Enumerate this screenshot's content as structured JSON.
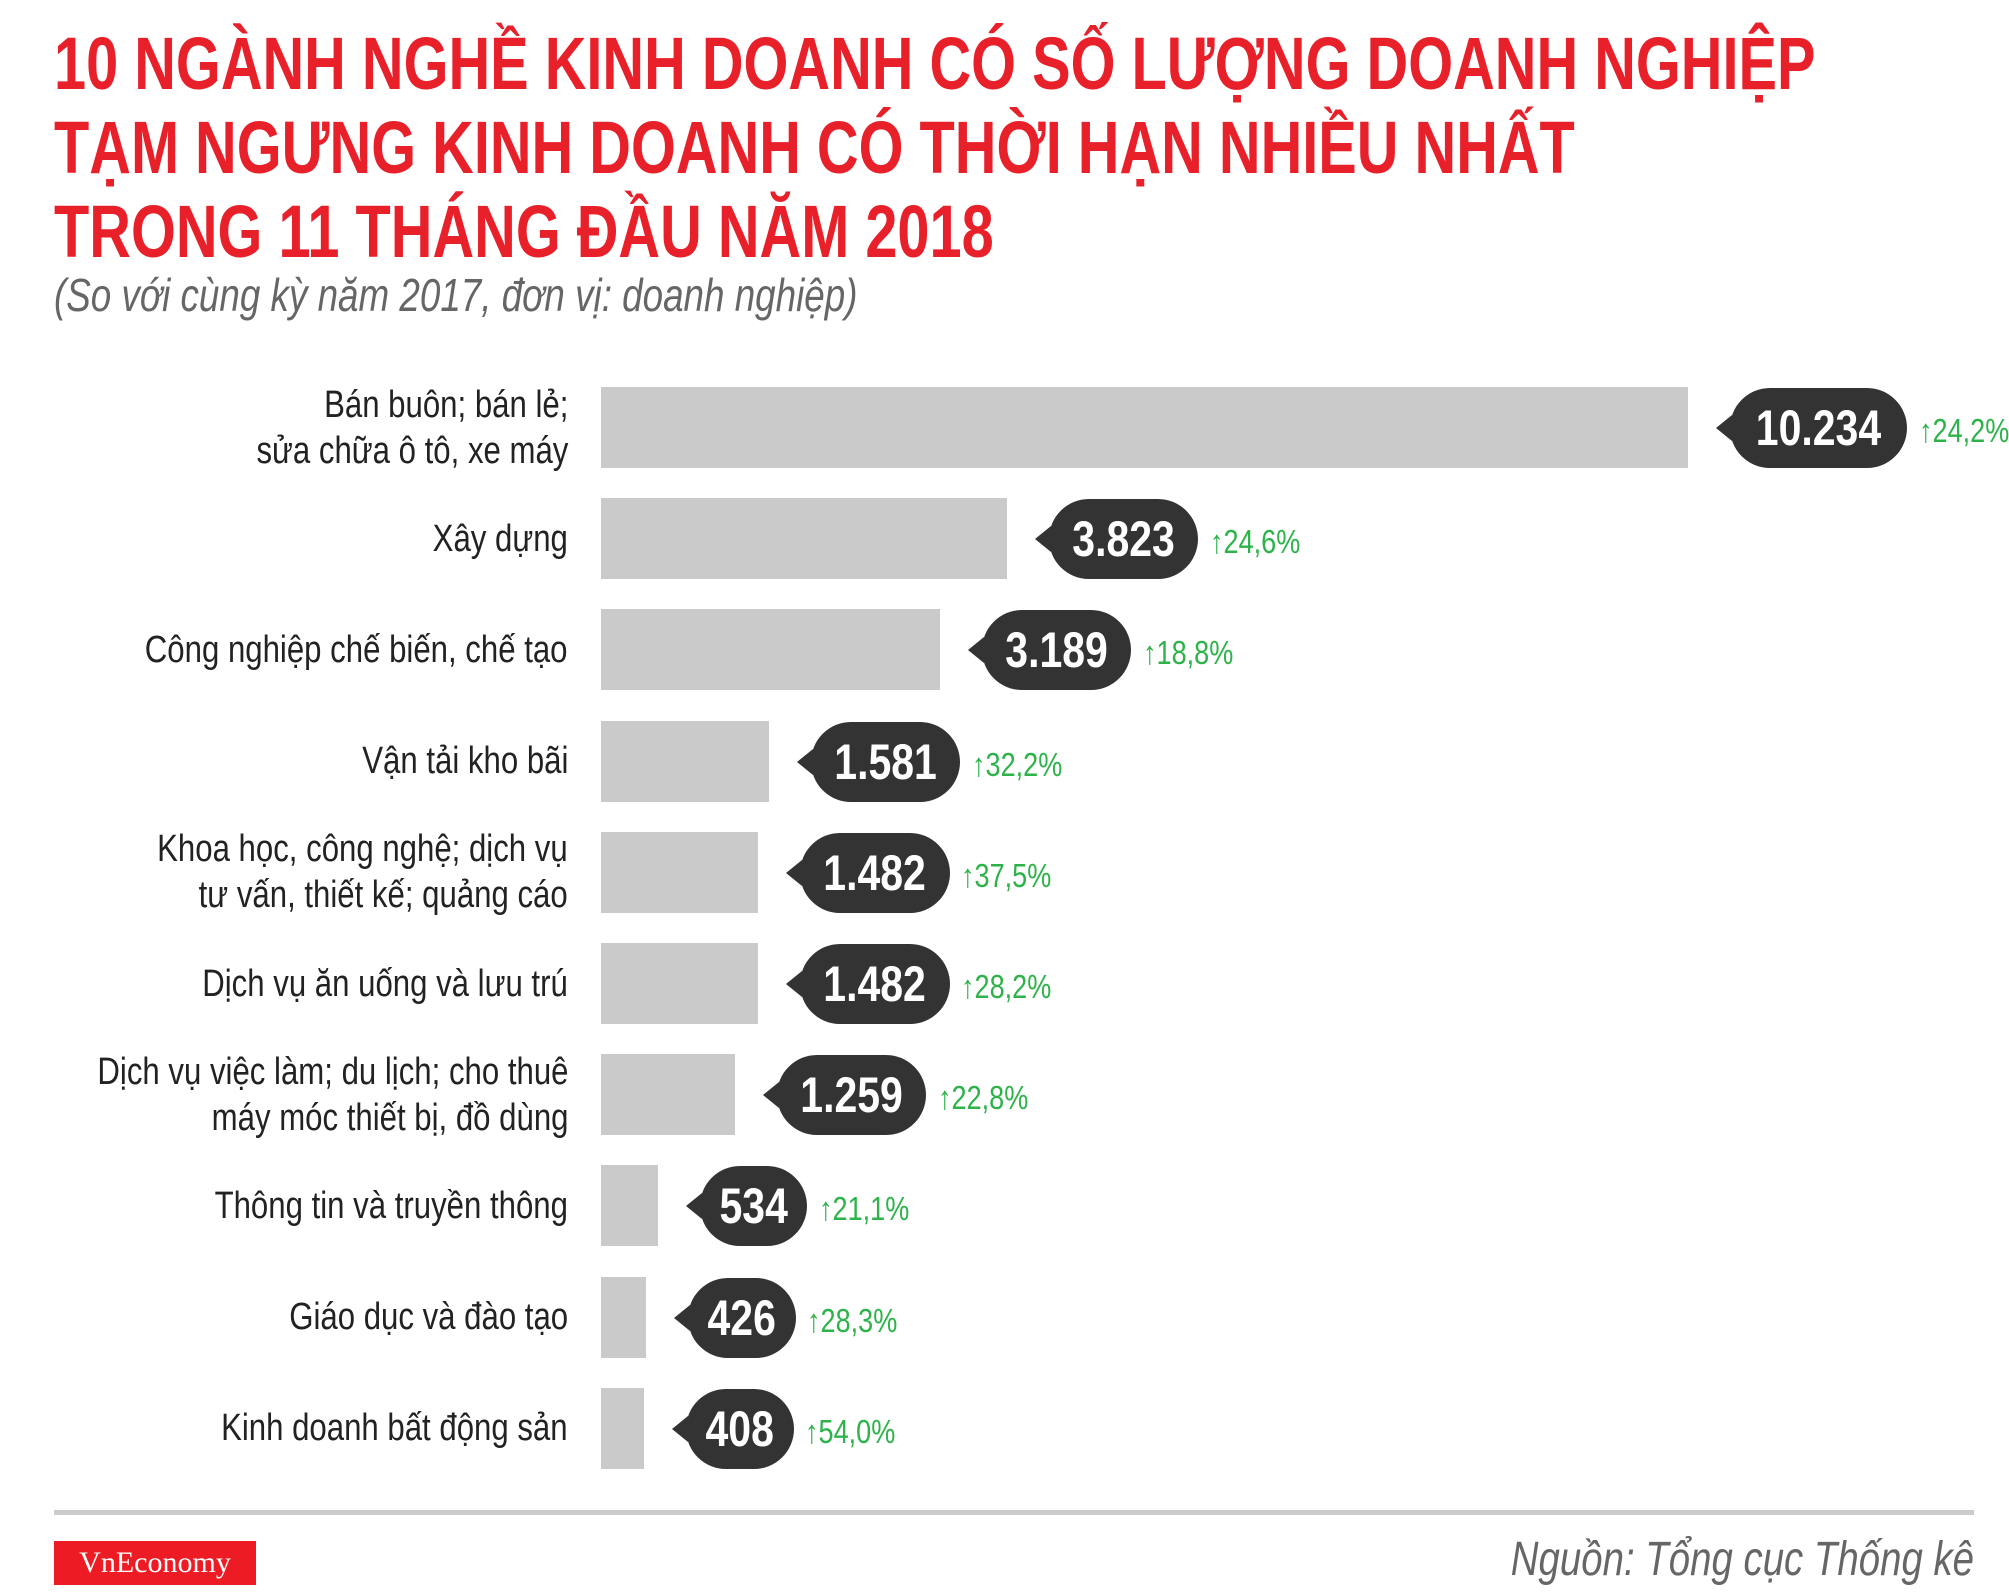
{
  "header": {
    "title_lines": [
      "10 NGÀNH NGHỀ KINH DOANH CÓ SỐ LƯỢNG DOANH NGHIỆP",
      "TẠM NGƯNG KINH DOANH CÓ THỜI HẠN NHIỀU NHẤT",
      "TRONG 11 THÁNG ĐẦU NĂM 2018"
    ],
    "subtitle": "(So với cùng kỳ năm 2017, đơn vị: doanh nghiệp)"
  },
  "chart_data": {
    "type": "bar",
    "orientation": "horizontal",
    "categories": [
      "Bán buôn; bán lẻ;\nsửa chữa ô tô, xe máy",
      "Xây dựng",
      "Công nghiệp chế biến, chế tạo",
      "Vận tải kho bãi",
      "Khoa học, công nghệ; dịch vụ\ntư vấn, thiết kế; quảng cáo",
      "Dịch vụ ăn uống và lưu trú",
      "Dịch vụ việc làm; du lịch; cho thuê\nmáy móc thiết bị, đồ dùng",
      "Thông tin và truyền thông",
      "Giáo dục và đào tạo",
      "Kinh doanh bất động sản"
    ],
    "values": [
      10234,
      3823,
      3189,
      1581,
      1482,
      1482,
      1259,
      534,
      426,
      408
    ],
    "value_labels": [
      "10.234",
      "3.823",
      "3.189",
      "1.581",
      "1.482",
      "1.482",
      "1.259",
      "534",
      "426",
      "408"
    ],
    "change_labels": [
      "24,2%",
      "24,6%",
      "18,8%",
      "32,2%",
      "37,5%",
      "28,2%",
      "22,8%",
      "21,1%",
      "28,3%",
      "54,0%"
    ],
    "change_direction": "up",
    "grid": false,
    "colors": {
      "bar": "#cbcacb",
      "callout": "#333333",
      "change": "#2db34a",
      "title": "#e8202a"
    }
  },
  "footer": {
    "logo": "VnEconomy",
    "source": "Nguồn: Tổng cục Thống kê"
  }
}
